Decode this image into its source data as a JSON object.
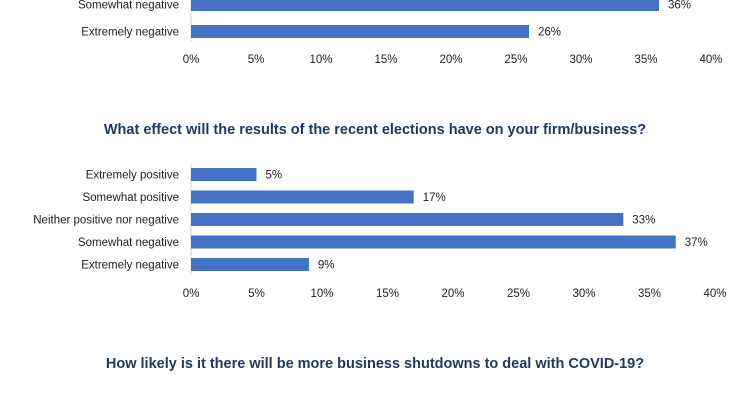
{
  "colors": {
    "bar": "#4472c4",
    "title": "#1f3864",
    "text": "#1f1f1f"
  },
  "chart_data": [
    {
      "type": "bar",
      "orientation": "horizontal",
      "title": "",
      "categories": [
        "Somewhat negative",
        "Extremely negative"
      ],
      "values": [
        36,
        26
      ],
      "value_labels": [
        "36%",
        "26%"
      ],
      "xlim": [
        0,
        40
      ],
      "ticks": [
        "0%",
        "5%",
        "10%",
        "15%",
        "20%",
        "25%",
        "30%",
        "35%",
        "40%"
      ],
      "grid": false
    },
    {
      "type": "bar",
      "orientation": "horizontal",
      "title": "What effect will the results of the recent elections have on your firm/business?",
      "categories": [
        "Extremely positive",
        "Somewhat positive",
        "Neither positive nor negative",
        "Somewhat negative",
        "Extremely negative"
      ],
      "values": [
        5,
        17,
        33,
        37,
        9
      ],
      "value_labels": [
        "5%",
        "17%",
        "33%",
        "37%",
        "9%"
      ],
      "xlim": [
        0,
        40
      ],
      "ticks": [
        "0%",
        "5%",
        "10%",
        "15%",
        "20%",
        "25%",
        "30%",
        "35%",
        "40%"
      ],
      "grid": false
    },
    {
      "type": "bar",
      "orientation": "horizontal",
      "title": "How likely is it there will be more business shutdowns to deal with COVID-19?",
      "categories": [],
      "values": [],
      "grid": false
    }
  ]
}
